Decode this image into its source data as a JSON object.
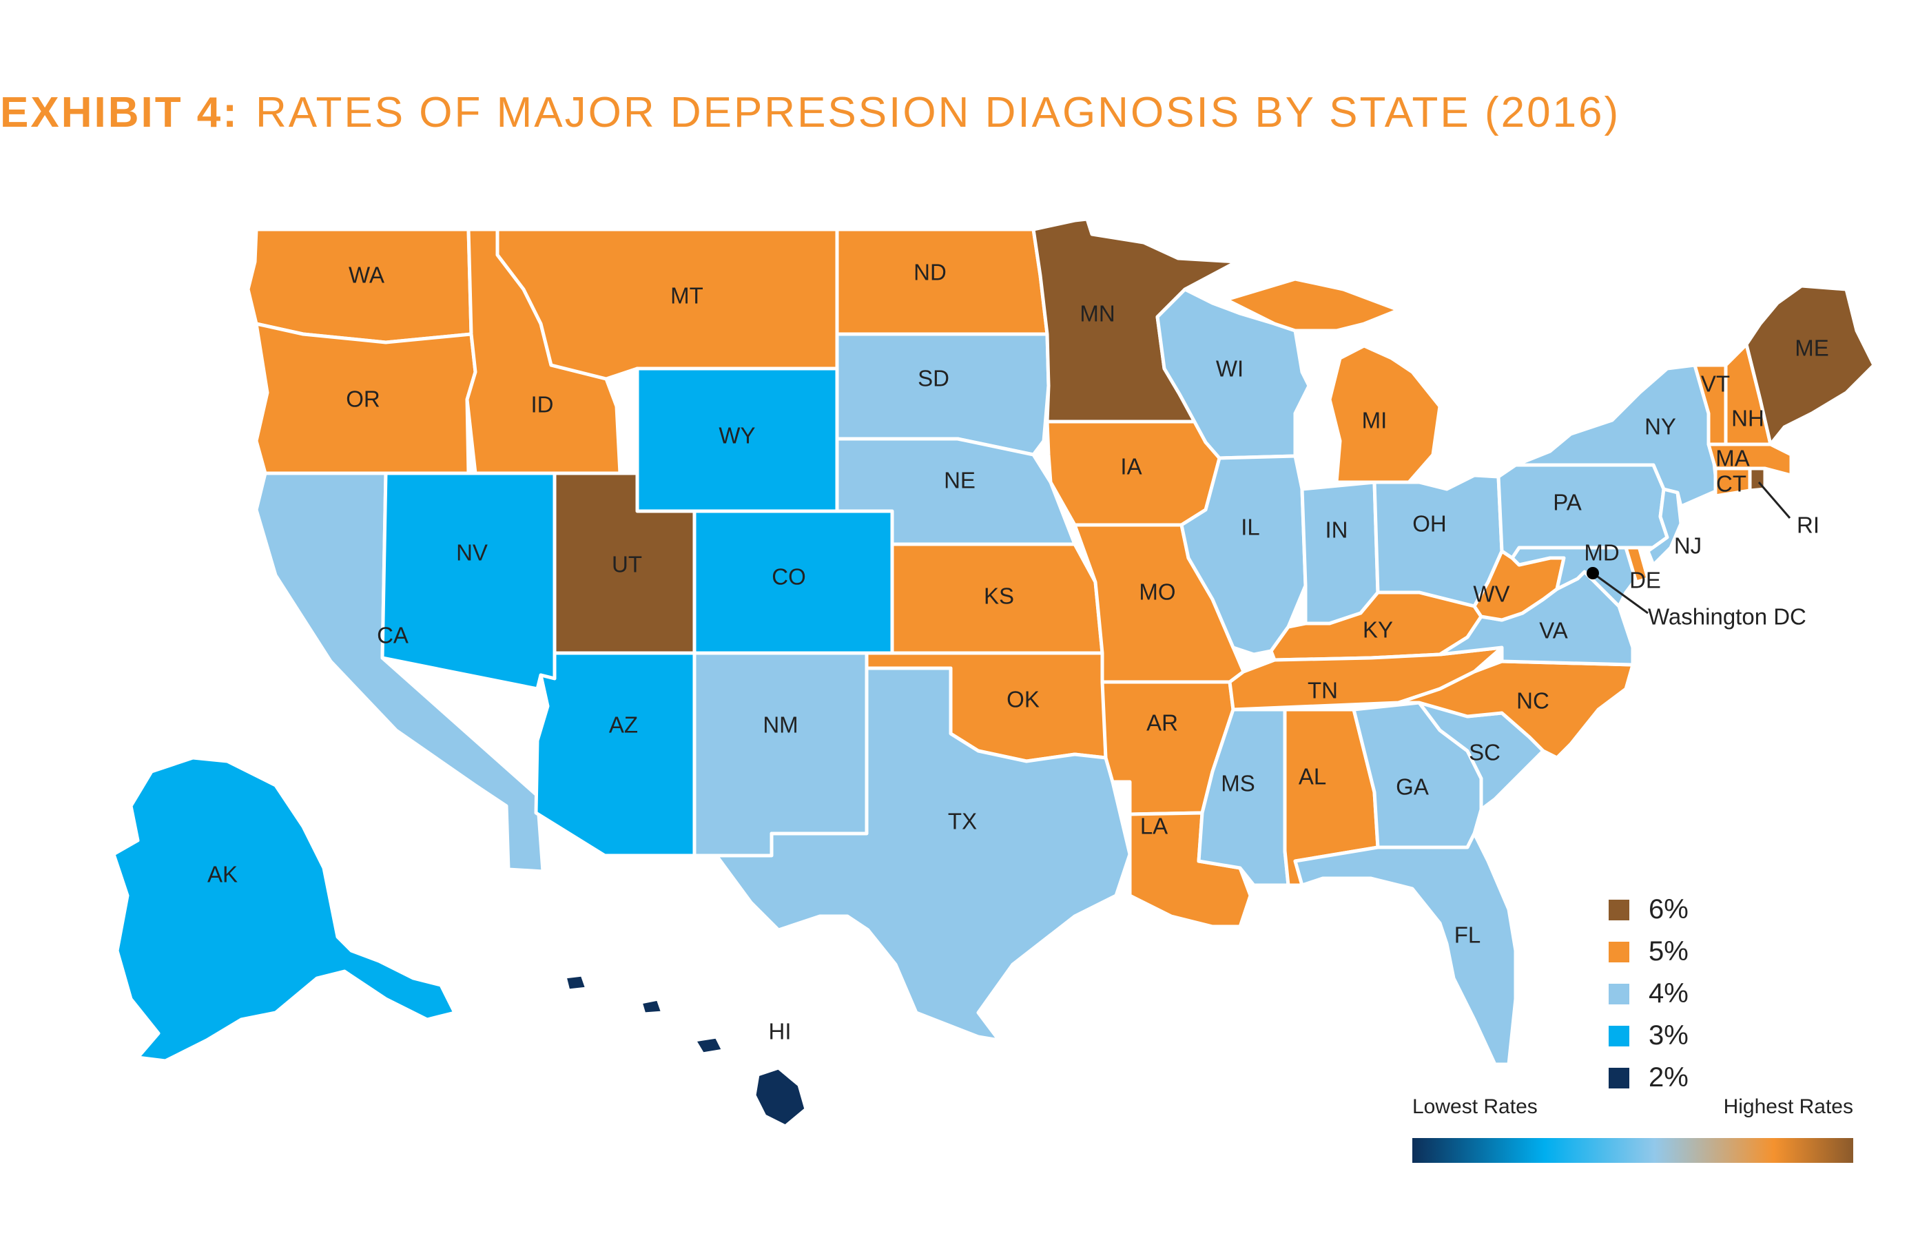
{
  "title": {
    "lead": "EXHIBIT 4:",
    "rest": "RATES OF MAJOR DEPRESSION DIAGNOSIS BY STATE (2016)"
  },
  "colors": {
    "6%": "#8b5a2b",
    "5%": "#f4922f",
    "4%": "#92c8ea",
    "3%": "#00aeef",
    "2%": "#0d2f59"
  },
  "states": [
    {
      "abbr": "WA",
      "rate": "5%"
    },
    {
      "abbr": "OR",
      "rate": "5%"
    },
    {
      "abbr": "CA",
      "rate": "4%"
    },
    {
      "abbr": "ID",
      "rate": "5%"
    },
    {
      "abbr": "NV",
      "rate": "3%"
    },
    {
      "abbr": "MT",
      "rate": "5%"
    },
    {
      "abbr": "WY",
      "rate": "3%"
    },
    {
      "abbr": "UT",
      "rate": "6%"
    },
    {
      "abbr": "AZ",
      "rate": "3%"
    },
    {
      "abbr": "CO",
      "rate": "3%"
    },
    {
      "abbr": "NM",
      "rate": "4%"
    },
    {
      "abbr": "ND",
      "rate": "5%"
    },
    {
      "abbr": "SD",
      "rate": "4%"
    },
    {
      "abbr": "NE",
      "rate": "4%"
    },
    {
      "abbr": "KS",
      "rate": "5%"
    },
    {
      "abbr": "OK",
      "rate": "5%"
    },
    {
      "abbr": "TX",
      "rate": "4%"
    },
    {
      "abbr": "MN",
      "rate": "6%"
    },
    {
      "abbr": "IA",
      "rate": "5%"
    },
    {
      "abbr": "MO",
      "rate": "5%"
    },
    {
      "abbr": "AR",
      "rate": "5%"
    },
    {
      "abbr": "LA",
      "rate": "5%"
    },
    {
      "abbr": "WI",
      "rate": "4%"
    },
    {
      "abbr": "IL",
      "rate": "4%"
    },
    {
      "abbr": "MI",
      "rate": "5%"
    },
    {
      "abbr": "IN",
      "rate": "4%"
    },
    {
      "abbr": "OH",
      "rate": "4%"
    },
    {
      "abbr": "KY",
      "rate": "5%"
    },
    {
      "abbr": "TN",
      "rate": "5%"
    },
    {
      "abbr": "MS",
      "rate": "4%"
    },
    {
      "abbr": "AL",
      "rate": "5%"
    },
    {
      "abbr": "GA",
      "rate": "4%"
    },
    {
      "abbr": "FL",
      "rate": "4%"
    },
    {
      "abbr": "SC",
      "rate": "4%"
    },
    {
      "abbr": "NC",
      "rate": "5%"
    },
    {
      "abbr": "VA",
      "rate": "4%"
    },
    {
      "abbr": "WV",
      "rate": "5%"
    },
    {
      "abbr": "MD",
      "rate": "4%"
    },
    {
      "abbr": "DE",
      "rate": "5%"
    },
    {
      "abbr": "PA",
      "rate": "4%"
    },
    {
      "abbr": "NJ",
      "rate": "4%"
    },
    {
      "abbr": "NY",
      "rate": "4%"
    },
    {
      "abbr": "CT",
      "rate": "5%"
    },
    {
      "abbr": "RI",
      "rate": "6%"
    },
    {
      "abbr": "MA",
      "rate": "5%"
    },
    {
      "abbr": "VT",
      "rate": "5%"
    },
    {
      "abbr": "NH",
      "rate": "5%"
    },
    {
      "abbr": "ME",
      "rate": "6%"
    },
    {
      "abbr": "AK",
      "rate": "3%"
    },
    {
      "abbr": "HI",
      "rate": "2%"
    }
  ],
  "dc_label": "Washington DC",
  "legend": {
    "items": [
      {
        "label": "6%",
        "color": "#8b5a2b"
      },
      {
        "label": "5%",
        "color": "#f4922f"
      },
      {
        "label": "4%",
        "color": "#92c8ea"
      },
      {
        "label": "3%",
        "color": "#00aeef"
      },
      {
        "label": "2%",
        "color": "#0d2f59"
      }
    ],
    "low_label": "Lowest Rates",
    "high_label": "Highest Rates"
  }
}
